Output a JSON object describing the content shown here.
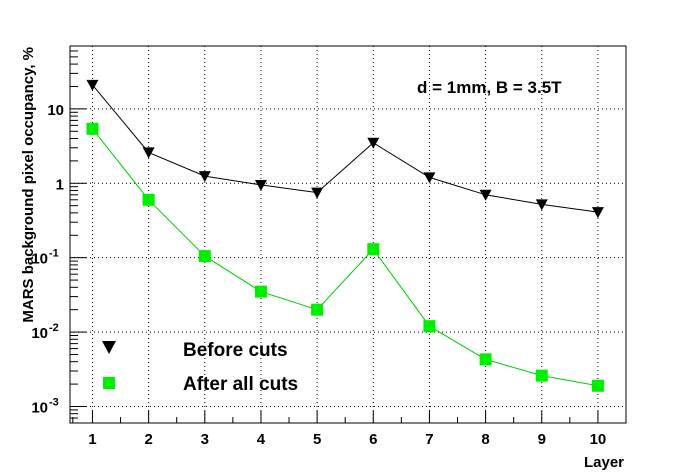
{
  "chart_data": {
    "type": "line",
    "annotation": "d = 1mm, B = 3.5T",
    "xlabel": "Layer",
    "ylabel": "MARS background pixel occupancy, %",
    "y_scale": "log",
    "ylim": [
      0.0006,
      70
    ],
    "xlim": [
      0.6,
      10.5
    ],
    "grid": true,
    "legend_position": "bottom-left",
    "x": [
      1,
      2,
      3,
      4,
      5,
      6,
      7,
      8,
      9,
      10
    ],
    "x_tick_labels": [
      "1",
      "2",
      "3",
      "4",
      "5",
      "6",
      "7",
      "8",
      "9",
      "10"
    ],
    "y_ticks": [
      {
        "value": 0.001,
        "base": "10",
        "exp": "-3"
      },
      {
        "value": 0.01,
        "base": "10",
        "exp": "-2"
      },
      {
        "value": 0.1,
        "base": "10",
        "exp": "-1"
      },
      {
        "value": 1,
        "base": "1",
        "exp": ""
      },
      {
        "value": 10,
        "base": "10",
        "exp": ""
      }
    ],
    "series": [
      {
        "name": "Before cuts",
        "marker": "triangle-down",
        "color": "#000000",
        "line_color": "#000000",
        "values": [
          21,
          2.6,
          1.25,
          0.95,
          0.75,
          3.5,
          1.2,
          0.7,
          0.52,
          0.41
        ]
      },
      {
        "name": "After all cuts",
        "marker": "square",
        "color": "#00ee00",
        "line_color": "#00cc00",
        "values": [
          5.4,
          0.6,
          0.105,
          0.035,
          0.02,
          0.13,
          0.012,
          0.0043,
          0.0026,
          0.0019
        ]
      }
    ]
  }
}
